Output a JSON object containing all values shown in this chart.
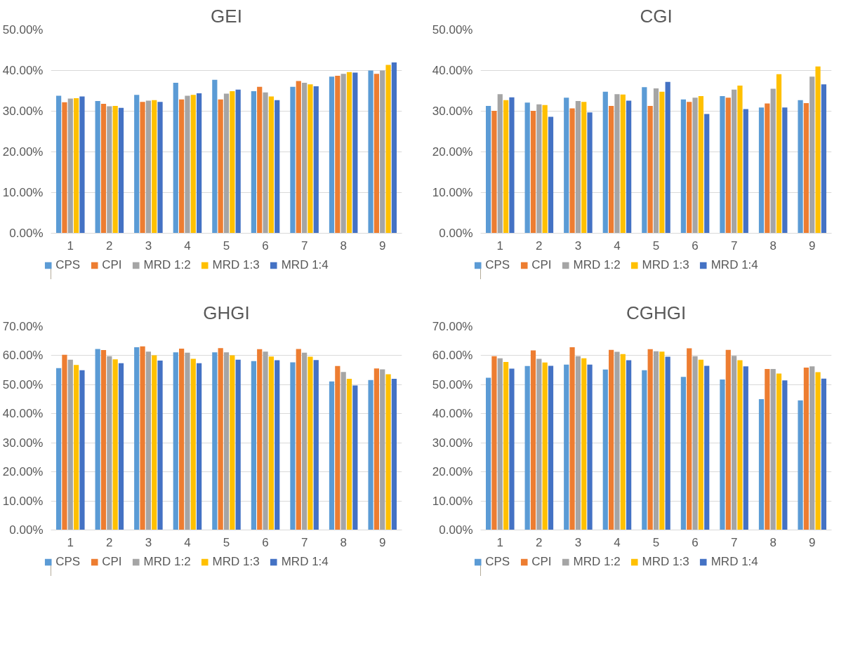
{
  "chart_data": [
    {
      "type": "bar",
      "title": "GEI",
      "categories": [
        "1",
        "2",
        "3",
        "4",
        "5",
        "6",
        "7",
        "8",
        "9"
      ],
      "series": [
        {
          "name": "CPS",
          "color": "#5b9bd5",
          "values": [
            33.8,
            32.5,
            34.0,
            37.0,
            37.7,
            34.9,
            36.0,
            38.5,
            40.0
          ]
        },
        {
          "name": "CPI",
          "color": "#ed7d31",
          "values": [
            32.2,
            31.8,
            32.3,
            32.9,
            32.9,
            36.0,
            37.4,
            38.7,
            39.2
          ]
        },
        {
          "name": "MRD 1:2",
          "color": "#a5a5a5",
          "values": [
            33.1,
            31.2,
            32.6,
            33.8,
            34.3,
            34.6,
            37.0,
            39.2,
            40.0
          ]
        },
        {
          "name": "MRD 1:3",
          "color": "#ffc000",
          "values": [
            33.2,
            31.3,
            32.7,
            34.0,
            34.9,
            33.6,
            36.6,
            39.6,
            41.4
          ]
        },
        {
          "name": "MRD 1:4",
          "color": "#4472c4",
          "values": [
            33.6,
            30.8,
            32.3,
            34.4,
            35.3,
            32.7,
            36.1,
            39.5,
            42.0
          ]
        }
      ],
      "ylim": [
        0,
        50
      ],
      "yticks": [
        {
          "value": 0,
          "label": "0.00%"
        },
        {
          "value": 10,
          "label": "10.00%"
        },
        {
          "value": 20,
          "label": "20.00%"
        },
        {
          "value": 30,
          "label": "30.00%"
        },
        {
          "value": 40,
          "label": "40.00%"
        },
        {
          "value": 50,
          "label": "50.00%"
        }
      ],
      "grid": "y",
      "legend": "bottom"
    },
    {
      "type": "bar",
      "title": "CGI",
      "categories": [
        "1",
        "2",
        "3",
        "4",
        "5",
        "6",
        "7",
        "8",
        "9"
      ],
      "series": [
        {
          "name": "CPS",
          "color": "#5b9bd5",
          "values": [
            31.3,
            32.1,
            33.3,
            34.8,
            35.9,
            32.9,
            33.7,
            30.9,
            32.7
          ]
        },
        {
          "name": "CPI",
          "color": "#ed7d31",
          "values": [
            30.1,
            30.1,
            30.7,
            31.3,
            31.3,
            32.3,
            33.3,
            31.9,
            32.0
          ]
        },
        {
          "name": "MRD 1:2",
          "color": "#a5a5a5",
          "values": [
            34.2,
            31.7,
            32.5,
            34.2,
            35.6,
            33.3,
            35.3,
            35.5,
            38.5
          ]
        },
        {
          "name": "MRD 1:3",
          "color": "#ffc000",
          "values": [
            32.7,
            31.5,
            32.3,
            34.1,
            34.8,
            33.7,
            36.3,
            39.1,
            41.0
          ]
        },
        {
          "name": "MRD 1:4",
          "color": "#4472c4",
          "values": [
            33.4,
            28.6,
            29.7,
            32.6,
            37.2,
            29.3,
            30.5,
            30.9,
            36.6
          ]
        }
      ],
      "ylim": [
        0,
        50
      ],
      "yticks": [
        {
          "value": 0,
          "label": "0.00%"
        },
        {
          "value": 10,
          "label": "10.00%"
        },
        {
          "value": 20,
          "label": "20.00%"
        },
        {
          "value": 30,
          "label": "30.00%"
        },
        {
          "value": 40,
          "label": "40.00%"
        },
        {
          "value": 50,
          "label": "50.00%"
        }
      ],
      "grid": "y",
      "legend": "bottom"
    },
    {
      "type": "bar",
      "title": "GHGI",
      "categories": [
        "1",
        "2",
        "3",
        "4",
        "5",
        "6",
        "7",
        "8",
        "9"
      ],
      "series": [
        {
          "name": "CPS",
          "color": "#5b9bd5",
          "values": [
            55.7,
            62.3,
            62.9,
            61.1,
            61.1,
            58.1,
            57.7,
            51.1,
            51.6
          ]
        },
        {
          "name": "CPI",
          "color": "#ed7d31",
          "values": [
            60.3,
            61.9,
            63.2,
            62.4,
            62.6,
            62.2,
            62.3,
            56.4,
            55.6
          ]
        },
        {
          "name": "MRD 1:2",
          "color": "#a5a5a5",
          "values": [
            58.6,
            59.8,
            61.4,
            61.0,
            61.1,
            61.4,
            61.0,
            54.4,
            55.3
          ]
        },
        {
          "name": "MRD 1:3",
          "color": "#ffc000",
          "values": [
            56.8,
            58.7,
            60.1,
            58.9,
            60.1,
            59.7,
            59.6,
            52.0,
            53.6
          ]
        },
        {
          "name": "MRD 1:4",
          "color": "#4472c4",
          "values": [
            55.0,
            57.4,
            58.3,
            57.4,
            58.6,
            58.4,
            58.5,
            49.7,
            52.0
          ]
        }
      ],
      "ylim": [
        0,
        70
      ],
      "yticks": [
        {
          "value": 0,
          "label": "0.00%"
        },
        {
          "value": 10,
          "label": "10.00%"
        },
        {
          "value": 20,
          "label": "20.00%"
        },
        {
          "value": 30,
          "label": "30.00%"
        },
        {
          "value": 40,
          "label": "40.00%"
        },
        {
          "value": 50,
          "label": "50.00%"
        },
        {
          "value": 60,
          "label": "60.00%"
        },
        {
          "value": 70,
          "label": "70.00%"
        }
      ],
      "grid": "y",
      "legend": "bottom"
    },
    {
      "type": "bar",
      "title": "CGHGI",
      "categories": [
        "1",
        "2",
        "3",
        "4",
        "5",
        "6",
        "7",
        "8",
        "9"
      ],
      "series": [
        {
          "name": "CPS",
          "color": "#5b9bd5",
          "values": [
            52.4,
            56.4,
            56.9,
            55.2,
            55.0,
            52.7,
            51.8,
            45.0,
            44.6
          ]
        },
        {
          "name": "CPI",
          "color": "#ed7d31",
          "values": [
            59.8,
            61.8,
            62.9,
            62.0,
            62.2,
            62.5,
            62.0,
            55.4,
            55.9
          ]
        },
        {
          "name": "MRD 1:2",
          "color": "#a5a5a5",
          "values": [
            59.1,
            58.9,
            59.8,
            61.3,
            61.5,
            59.8,
            59.9,
            55.4,
            56.3
          ]
        },
        {
          "name": "MRD 1:3",
          "color": "#ffc000",
          "values": [
            57.8,
            57.6,
            59.1,
            60.5,
            61.4,
            58.6,
            58.4,
            53.8,
            54.3
          ]
        },
        {
          "name": "MRD 1:4",
          "color": "#4472c4",
          "values": [
            55.5,
            56.5,
            56.9,
            58.4,
            59.6,
            56.5,
            56.3,
            51.5,
            52.1
          ]
        }
      ],
      "ylim": [
        0,
        70
      ],
      "yticks": [
        {
          "value": 0,
          "label": "0.00%"
        },
        {
          "value": 10,
          "label": "10.00%"
        },
        {
          "value": 20,
          "label": "20.00%"
        },
        {
          "value": 30,
          "label": "30.00%"
        },
        {
          "value": 40,
          "label": "40.00%"
        },
        {
          "value": 50,
          "label": "50.00%"
        },
        {
          "value": 60,
          "label": "60.00%"
        },
        {
          "value": 70,
          "label": "70.00%"
        }
      ],
      "grid": "y",
      "legend": "bottom"
    }
  ]
}
